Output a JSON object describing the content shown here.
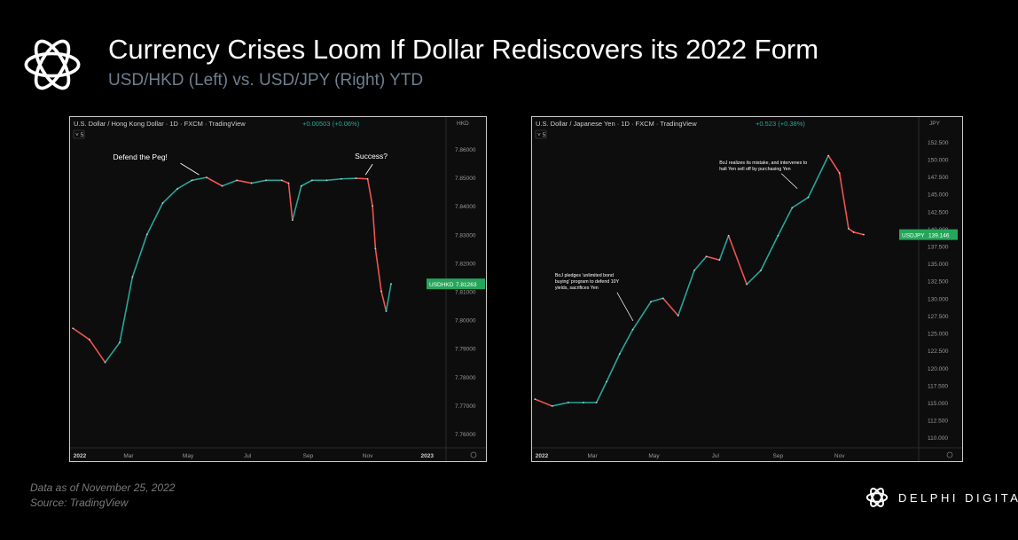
{
  "header": {
    "title": "Currency Crises Loom If Dollar Rediscovers its 2022 Form",
    "subtitle": "USD/HKD (Left) vs. USD/JPY (Right) YTD"
  },
  "footer": {
    "note": "Data as of November 25, 2022",
    "source": "Source: TradingView",
    "brand": "DELPHI DIGITAL"
  },
  "colors": {
    "up": "#26a69a",
    "down": "#ef5350",
    "price_tag": "#26a65b",
    "background": "#000000"
  },
  "chart_data": [
    {
      "type": "line",
      "instrument": "U.S. Dollar / Hong Kong Dollar · 1D · FXCM · TradingView",
      "change": "+0.00503 (+0.06%)",
      "interval_badge": "5",
      "currency_label": "HKD",
      "price_label": {
        "symbol": "USDHKD",
        "value": "7.81263"
      },
      "x_ticks": [
        "2022",
        "Mar",
        "May",
        "Jul",
        "Sep",
        "Nov",
        "2023"
      ],
      "y_ticks": [
        "7.86000",
        "7.85000",
        "7.84000",
        "7.83000",
        "7.82000",
        "7.81000",
        "7.80000",
        "7.79000",
        "7.78000",
        "7.77000",
        "7.76000"
      ],
      "ylim": [
        7.755,
        7.865
      ],
      "x": [
        "2022-01-03",
        "2022-01-20",
        "2022-02-05",
        "2022-02-20",
        "2022-03-05",
        "2022-03-20",
        "2022-04-05",
        "2022-04-20",
        "2022-05-05",
        "2022-05-20",
        "2022-06-05",
        "2022-06-20",
        "2022-07-05",
        "2022-07-20",
        "2022-08-05",
        "2022-08-12",
        "2022-08-16",
        "2022-08-25",
        "2022-09-05",
        "2022-09-20",
        "2022-10-05",
        "2022-10-20",
        "2022-11-01",
        "2022-11-06",
        "2022-11-09",
        "2022-11-15",
        "2022-11-20",
        "2022-11-25"
      ],
      "values": [
        7.797,
        7.793,
        7.785,
        7.792,
        7.815,
        7.83,
        7.841,
        7.846,
        7.849,
        7.85,
        7.847,
        7.849,
        7.848,
        7.849,
        7.849,
        7.848,
        7.835,
        7.847,
        7.849,
        7.849,
        7.8495,
        7.8497,
        7.8495,
        7.84,
        7.825,
        7.81,
        7.803,
        7.8126
      ],
      "annotations": [
        {
          "text": "Defend the Peg!",
          "x": "2022-05-15",
          "y": 7.85
        },
        {
          "text": "Success?",
          "x": "2022-10-28",
          "y": 7.8497
        }
      ]
    },
    {
      "type": "line",
      "instrument": "U.S. Dollar / Japanese Yen · 1D · FXCM · TradingView",
      "change": "+0.523 (+0.38%)",
      "interval_badge": "5",
      "currency_label": "JPY",
      "price_label": {
        "symbol": "USDJPY",
        "value": "139.146"
      },
      "x_ticks": [
        "2022",
        "Mar",
        "May",
        "Jul",
        "Sep",
        "Nov"
      ],
      "y_ticks": [
        "152.500",
        "150.000",
        "147.500",
        "145.000",
        "142.500",
        "140.000",
        "137.500",
        "135.000",
        "132.500",
        "130.000",
        "127.500",
        "125.000",
        "122.500",
        "120.000",
        "117.500",
        "115.000",
        "112.500",
        "110.000"
      ],
      "ylim": [
        108.5,
        153.5
      ],
      "x": [
        "2022-01-03",
        "2022-01-20",
        "2022-02-05",
        "2022-02-20",
        "2022-03-05",
        "2022-03-15",
        "2022-03-28",
        "2022-04-10",
        "2022-04-28",
        "2022-05-10",
        "2022-05-25",
        "2022-06-10",
        "2022-06-22",
        "2022-07-05",
        "2022-07-14",
        "2022-08-01",
        "2022-08-15",
        "2022-09-01",
        "2022-09-15",
        "2022-10-01",
        "2022-10-21",
        "2022-11-01",
        "2022-11-10",
        "2022-11-15",
        "2022-11-25"
      ],
      "values": [
        115.5,
        114.5,
        115,
        115,
        115,
        118,
        122,
        125.5,
        129.5,
        130,
        127.5,
        134,
        136,
        135.5,
        139,
        132,
        134,
        139,
        143,
        144.5,
        150.5,
        148,
        140,
        139.5,
        139.146
      ],
      "annotations": [
        {
          "text": "BoJ pledges 'unlimited bond buying' program to defend 10Y yields, sacrifices Yen",
          "x": "2022-04-12",
          "y": 126.5
        },
        {
          "text": "BoJ realizes its mistake, and intervenes to halt Yen sell off by purchasing Yen",
          "x": "2022-09-22",
          "y": 145.5
        }
      ]
    }
  ]
}
